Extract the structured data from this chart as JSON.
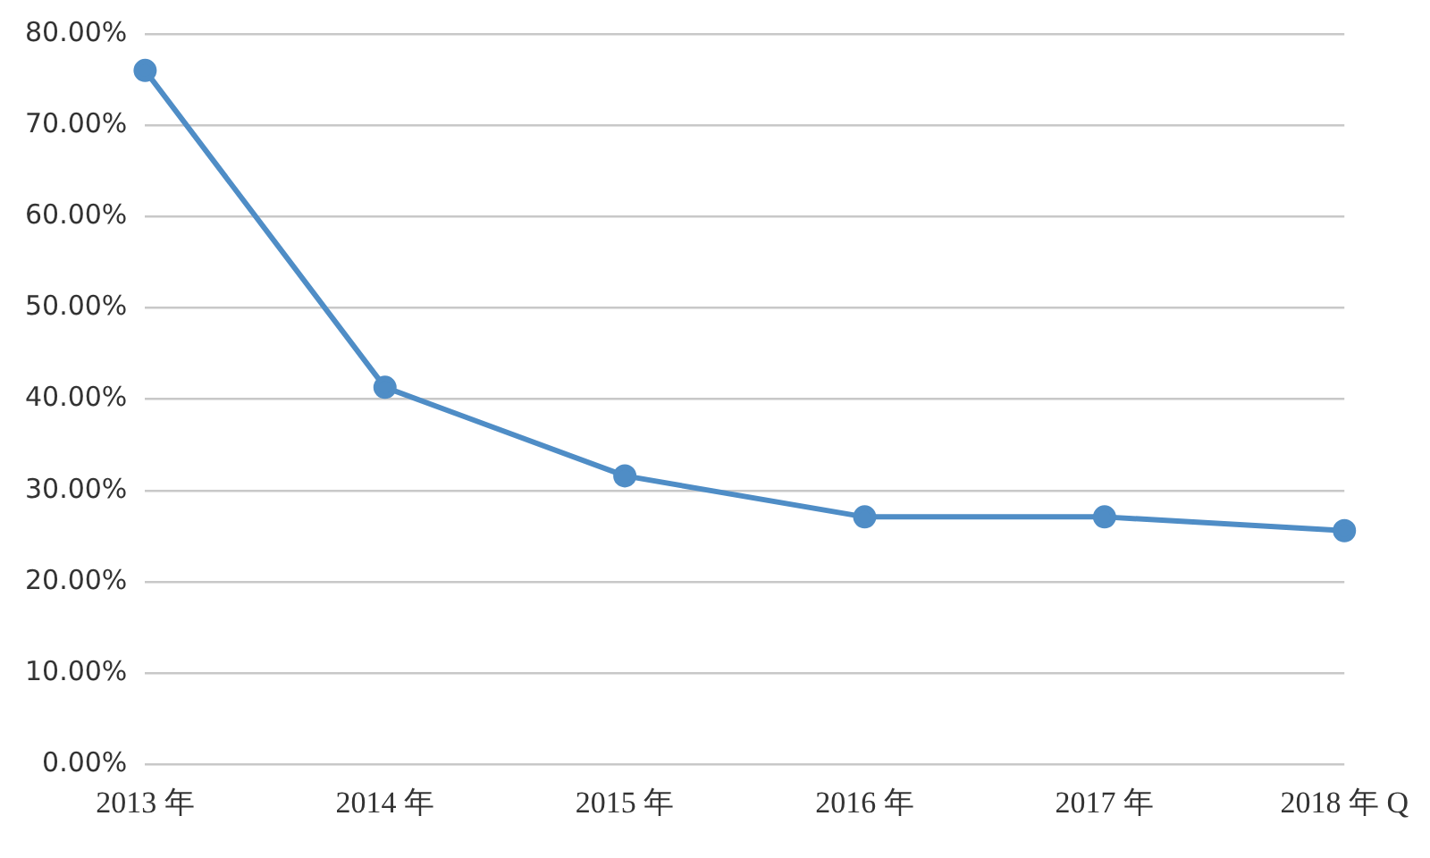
{
  "chart_data": {
    "type": "line",
    "categories": [
      "2013 年",
      "2014 年",
      "2015 年",
      "2016 年",
      "2017 年",
      "2018 年 Q"
    ],
    "series": [
      {
        "color": "#4f8dc6",
        "values": [
          76,
          41.3,
          31.6,
          27.1,
          27.1,
          25.6
        ]
      }
    ],
    "ylim": [
      0,
      80
    ],
    "yticks": [
      {
        "value": 0,
        "label": "0.00%"
      },
      {
        "value": 10,
        "label": "10.00%"
      },
      {
        "value": 20,
        "label": "20.00%"
      },
      {
        "value": 30,
        "label": "30.00%"
      },
      {
        "value": 40,
        "label": "40.00%"
      },
      {
        "value": 50,
        "label": "50.00%"
      },
      {
        "value": 60,
        "label": "60.00%"
      },
      {
        "value": 70,
        "label": "70.00%"
      },
      {
        "value": 80,
        "label": "80.00%"
      }
    ],
    "grid": "y",
    "legend": false,
    "marker": "circle",
    "line_style": "solid"
  }
}
